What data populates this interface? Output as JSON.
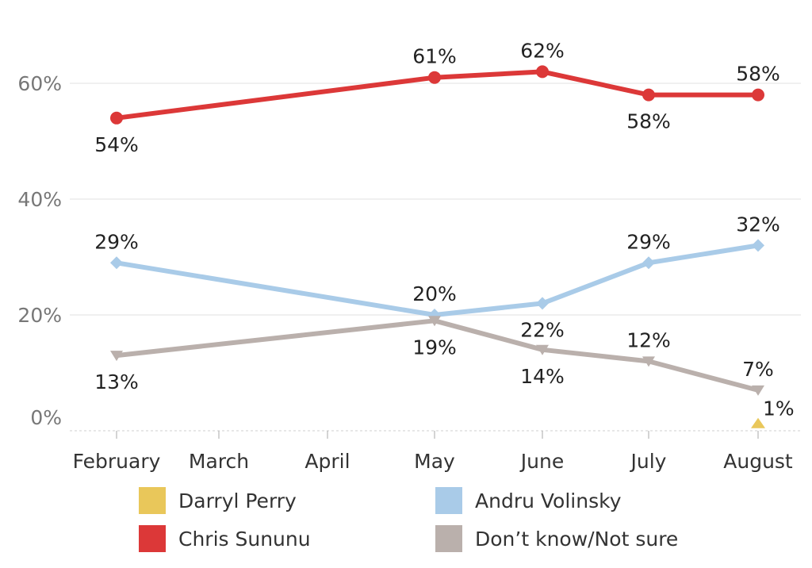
{
  "chart_data": {
    "type": "line",
    "x_categories": [
      "February",
      "March",
      "April",
      "May",
      "June",
      "July",
      "August"
    ],
    "y_ticks": [
      "0%",
      "20%",
      "40%",
      "60%"
    ],
    "ylim": [
      0,
      66
    ],
    "grid": true,
    "legend_position": "bottom",
    "series": [
      {
        "name": "Chris Sununu",
        "color": "#dc3838",
        "marker": "circle",
        "points": [
          {
            "x": "February",
            "y": 54,
            "label": "54%",
            "label_pos": "below"
          },
          {
            "x": "May",
            "y": 61,
            "label": "61%",
            "label_pos": "above"
          },
          {
            "x": "June",
            "y": 62,
            "label": "62%",
            "label_pos": "above"
          },
          {
            "x": "July",
            "y": 58,
            "label": "58%",
            "label_pos": "below"
          },
          {
            "x": "August",
            "y": 58,
            "label": "58%",
            "label_pos": "above"
          }
        ]
      },
      {
        "name": "Andru Volinsky",
        "color": "#a9cbe8",
        "marker": "diamond",
        "points": [
          {
            "x": "February",
            "y": 29,
            "label": "29%",
            "label_pos": "above"
          },
          {
            "x": "May",
            "y": 20,
            "label": "20%",
            "label_pos": "above"
          },
          {
            "x": "June",
            "y": 22,
            "label": "22%",
            "label_pos": "below"
          },
          {
            "x": "July",
            "y": 29,
            "label": "29%",
            "label_pos": "above"
          },
          {
            "x": "August",
            "y": 32,
            "label": "32%",
            "label_pos": "above"
          }
        ]
      },
      {
        "name": "Don’t know/Not sure",
        "color": "#bab0ac",
        "marker": "triangle-down",
        "points": [
          {
            "x": "February",
            "y": 13,
            "label": "13%",
            "label_pos": "below"
          },
          {
            "x": "May",
            "y": 19,
            "label": "19%",
            "label_pos": "below"
          },
          {
            "x": "June",
            "y": 14,
            "label": "14%",
            "label_pos": "below"
          },
          {
            "x": "July",
            "y": 12,
            "label": "12%",
            "label_pos": "above"
          },
          {
            "x": "August",
            "y": 7,
            "label": "7%",
            "label_pos": "above"
          }
        ]
      },
      {
        "name": "Darryl Perry",
        "color": "#e9c75a",
        "marker": "triangle-up",
        "points": [
          {
            "x": "August",
            "y": 1,
            "label": "1%",
            "label_pos": "right"
          }
        ]
      }
    ],
    "legend": [
      {
        "name": "Darryl Perry",
        "color": "#e9c75a"
      },
      {
        "name": "Andru Volinsky",
        "color": "#a9cbe8"
      },
      {
        "name": "Chris Sununu",
        "color": "#dc3838"
      },
      {
        "name": "Don’t know/Not sure",
        "color": "#bab0ac"
      }
    ]
  }
}
